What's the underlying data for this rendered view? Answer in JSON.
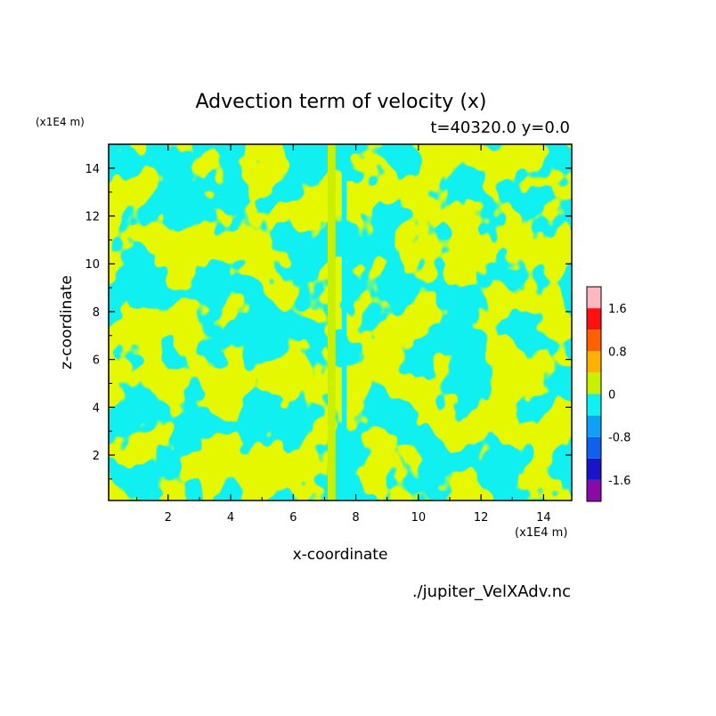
{
  "chart_data": {
    "type": "heatmap",
    "title": "Advection term of velocity (x)",
    "subtitle": "t=40320.0 y=0.0",
    "xlabel": "x-coordinate",
    "ylabel": "z-coordinate",
    "x_unit": "(x1E4 m)",
    "y_unit": "(x1E4 m)",
    "xlim": [
      0.1,
      14.9
    ],
    "ylim": [
      0.1,
      15.0
    ],
    "x_ticks": [
      2,
      4,
      6,
      8,
      10,
      12,
      14
    ],
    "y_ticks": [
      2,
      4,
      6,
      8,
      10,
      12,
      14
    ],
    "x_tick_labels": [
      "2",
      "4",
      "6",
      "8",
      "10",
      "12",
      "14"
    ],
    "y_tick_labels": [
      "2",
      "4",
      "6",
      "8",
      "10",
      "12",
      "14"
    ],
    "source_file": "./jupiter_VelXAdv.nc",
    "colorbar": {
      "levels": [
        -2.0,
        -1.6,
        -1.2,
        -0.8,
        -0.4,
        0.0,
        0.4,
        0.8,
        1.2,
        1.6,
        2.0
      ],
      "colors": [
        "#8a0aa8",
        "#1a14c8",
        "#1060f0",
        "#10a0f8",
        "#10f0f0",
        "#c8f000",
        "#ffb000",
        "#ff6000",
        "#ff1010",
        "#ffb8c0"
      ],
      "tick_values": [
        -1.6,
        -0.8,
        0,
        0.8,
        1.6
      ],
      "tick_labels": [
        "-1.6",
        "-0.8",
        "0",
        "0.8",
        "1.6"
      ]
    },
    "field_colors": {
      "positive": "#c8f000",
      "negative": "#10f0f0"
    },
    "field_description_note": "Field values range roughly between -0.4 and 0.4; regions shown as two contour classes."
  }
}
